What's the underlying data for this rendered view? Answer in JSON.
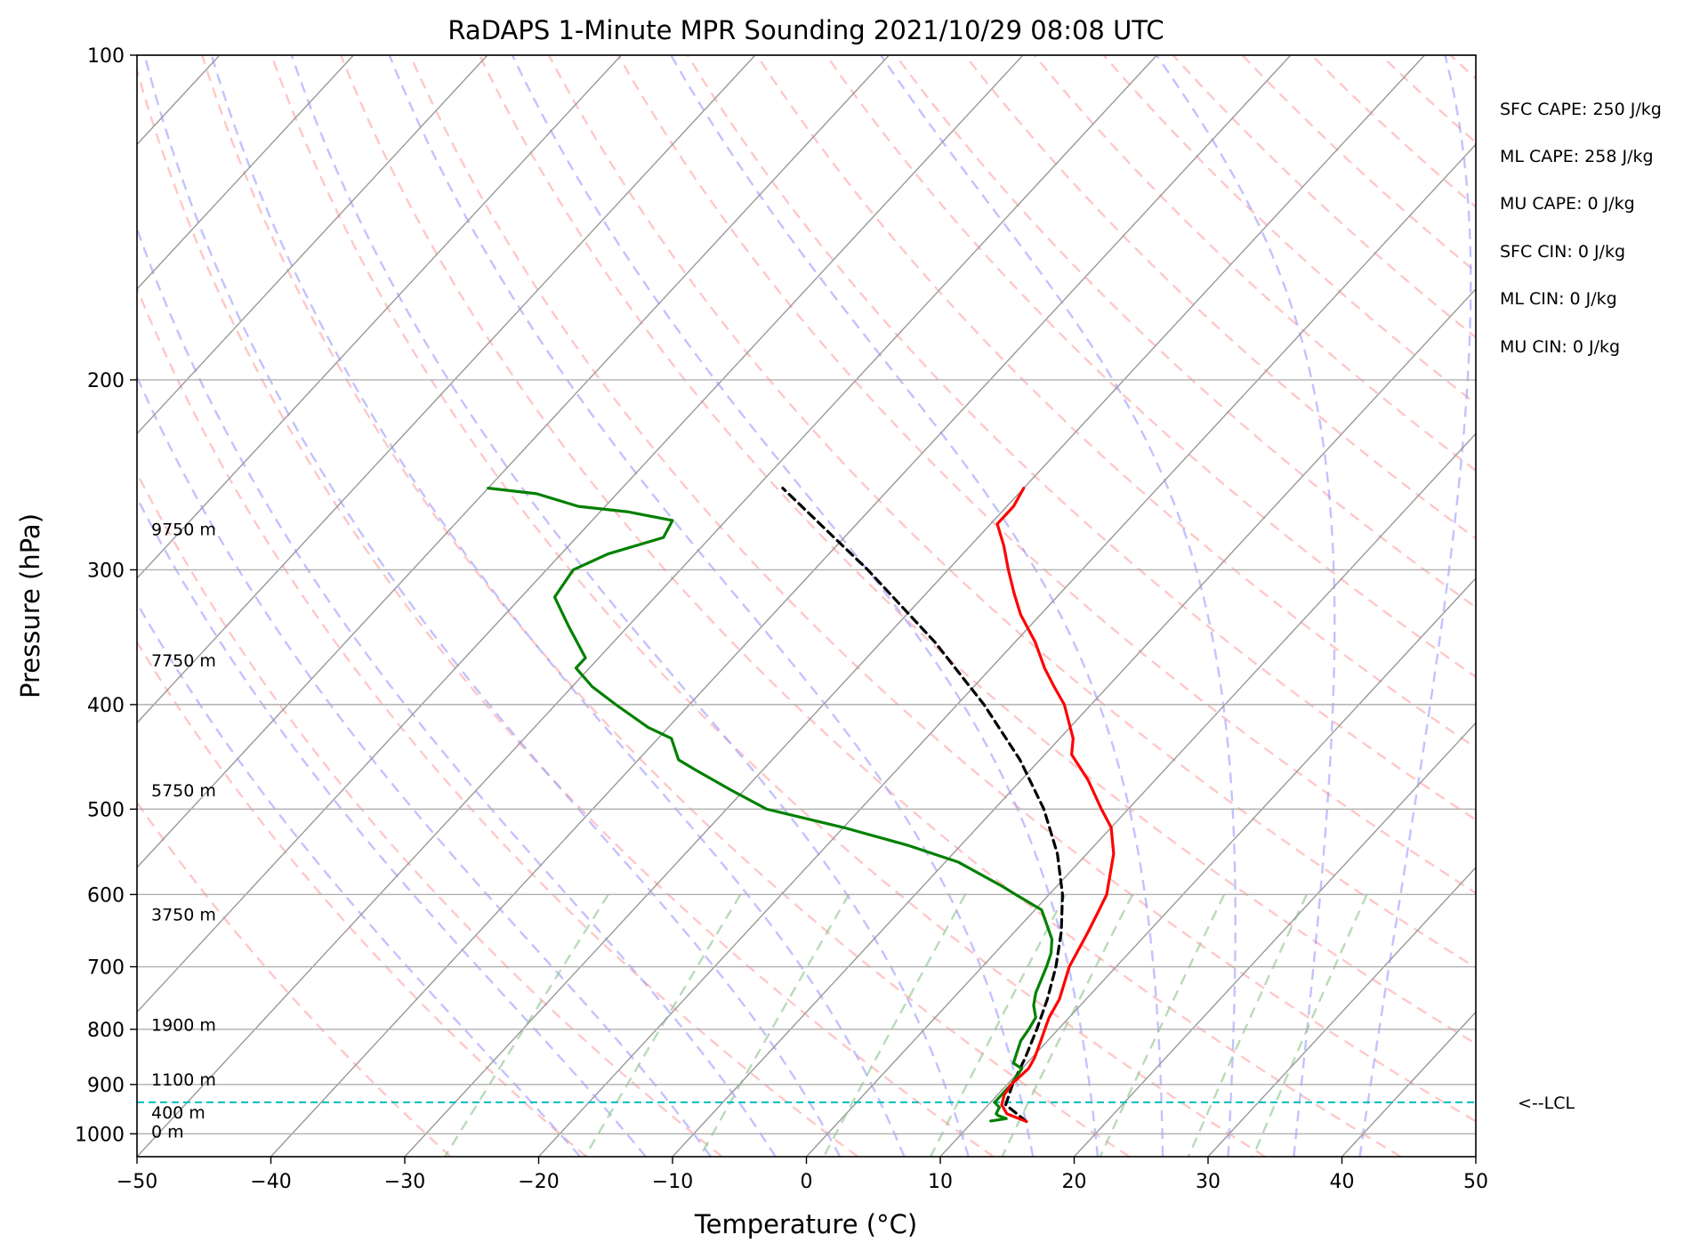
{
  "chart_data": {
    "type": "skew-t log-p sounding",
    "title": "RaDAPS 1-Minute MPR Sounding 2021/10/29 08:08 UTC",
    "xlabel": "Temperature (°C)",
    "ylabel": "Pressure (hPa)",
    "xlim": [
      -50,
      50
    ],
    "ylim": [
      1050,
      100
    ],
    "y_scale": "log",
    "grid": true,
    "x_ticks": [
      -50,
      -40,
      -30,
      -20,
      -10,
      0,
      10,
      20,
      30,
      40,
      50
    ],
    "x_tick_labels": [
      "−50",
      "−40",
      "−30",
      "−20",
      "−10",
      "0",
      "10",
      "20",
      "30",
      "40",
      "50"
    ],
    "y_ticks": [
      100,
      200,
      300,
      400,
      500,
      600,
      700,
      800,
      900,
      1000
    ],
    "y_tick_labels": [
      "100",
      "200",
      "300",
      "400",
      "500",
      "600",
      "700",
      "800",
      "900",
      "1000"
    ],
    "colors": {
      "temperature": "#ff0000",
      "dewpoint": "#008000",
      "parcel": "#000000",
      "lcl": "#00bfbf",
      "dry_adiabats": "#ff9999",
      "moist_adiabats": "#9999ff",
      "mixing_ratio": "#99cc99",
      "isotherms": "#999999"
    },
    "temperature_profile": {
      "pressure": [
        974,
        966,
        958,
        940,
        920,
        900,
        870,
        850,
        820,
        800,
        780,
        750,
        700,
        650,
        620,
        600,
        550,
        520,
        500,
        470,
        445,
        430,
        400,
        385,
        370,
        350,
        330,
        315,
        300,
        285,
        272,
        262,
        252
      ],
      "temperature": [
        14.0,
        13.0,
        12.0,
        11.0,
        10.5,
        10.3,
        10.5,
        10.2,
        9.5,
        9.0,
        8.5,
        8.0,
        6.5,
        5.5,
        4.8,
        4.3,
        2.0,
        0.0,
        -2.0,
        -5.0,
        -8.0,
        -9.0,
        -12.0,
        -14.0,
        -16.0,
        -18.5,
        -21.5,
        -23.5,
        -25.5,
        -27.5,
        -29.5,
        -29.5,
        -30.0
      ]
    },
    "dewpoint_profile": {
      "pressure": [
        973,
        968,
        962,
        958,
        945,
        935,
        920,
        900,
        870,
        860,
        840,
        820,
        800,
        780,
        760,
        740,
        700,
        680,
        660,
        620,
        600,
        590,
        560,
        540,
        520,
        500,
        480,
        460,
        450,
        430,
        420,
        400,
        385,
        370,
        362,
        355,
        338,
        318,
        300,
        290,
        280,
        270,
        265,
        262,
        255,
        252
      ],
      "dewpoint": [
        11.3,
        12.3,
        11.5,
        11.2,
        11.0,
        10.3,
        10.3,
        10.3,
        10.0,
        9.0,
        8.5,
        8.0,
        7.8,
        7.5,
        6.5,
        5.8,
        4.8,
        4.2,
        3.3,
        0.5,
        -2.5,
        -4.0,
        -9.0,
        -14.0,
        -20.0,
        -27.0,
        -31.0,
        -35.0,
        -37.0,
        -39.0,
        -41.5,
        -45.5,
        -48.5,
        -51.0,
        -51.0,
        -52.0,
        -54.5,
        -57.5,
        -58.0,
        -56.5,
        -53.5,
        -54.0,
        -58.0,
        -62.0,
        -66.0,
        -70.0
      ]
    },
    "parcel_profile": {
      "pressure": [
        974,
        940,
        900,
        850,
        800,
        750,
        700,
        650,
        600,
        550,
        500,
        450,
        400,
        350,
        300,
        252
      ],
      "temperature": [
        14.0,
        11.3,
        10.4,
        9.5,
        8.4,
        7.1,
        5.5,
        3.5,
        1.0,
        -2.2,
        -6.3,
        -11.5,
        -18.0,
        -26.0,
        -36.0,
        -48.0
      ]
    },
    "lcl_pressure": 935,
    "lcl_label": "<--LCL",
    "height_labels": [
      {
        "pressure": 995,
        "text": "0 m"
      },
      {
        "pressure": 955,
        "text": "400 m"
      },
      {
        "pressure": 890,
        "text": "1100 m"
      },
      {
        "pressure": 792,
        "text": "1900 m"
      },
      {
        "pressure": 626,
        "text": "3750 m"
      },
      {
        "pressure": 480,
        "text": "5750 m"
      },
      {
        "pressure": 364,
        "text": "7750 m"
      },
      {
        "pressure": 275,
        "text": "9750 m"
      }
    ],
    "stats": [
      "SFC CAPE: 250 J/kg",
      "ML CAPE: 258 J/kg",
      "MU CAPE: 0 J/kg",
      "SFC CIN: 0 J/kg",
      "ML CIN: 0 J/kg",
      "MU CIN: 0 J/kg"
    ]
  }
}
